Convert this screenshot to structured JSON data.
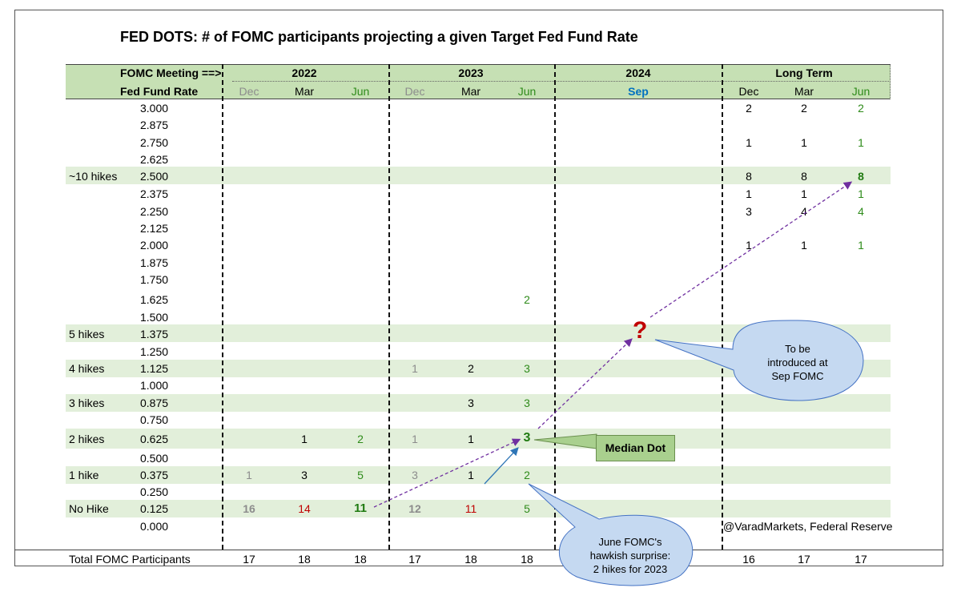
{
  "title": "FED DOTS: # of FOMC participants projecting a given Target Fed Fund Rate",
  "header": {
    "meeting_label": "FOMC Meeting ==>",
    "rate_label": "Fed Fund Rate",
    "groups": [
      "2022",
      "2023",
      "2024",
      "Long Term"
    ],
    "months": {
      "g2022": [
        "Dec",
        "Mar",
        "Jun"
      ],
      "g2023": [
        "Dec",
        "Mar",
        "Jun"
      ],
      "g2024": [
        "Sep"
      ],
      "glt": [
        "Dec",
        "Mar",
        "Jun"
      ]
    }
  },
  "rates": [
    "3.000",
    "2.875",
    "2.750",
    "2.625",
    "2.500",
    "2.375",
    "2.250",
    "2.125",
    "2.000",
    "1.875",
    "1.750",
    "1.625",
    "1.500",
    "1.375",
    "1.250",
    "1.125",
    "1.000",
    "0.875",
    "0.750",
    "0.625",
    "0.500",
    "0.375",
    "0.250",
    "0.125",
    "0.000"
  ],
  "hike_labels": {
    "r4": "~10 hikes",
    "r13": "5 hikes",
    "r15": "4 hikes",
    "r17": "3 hikes",
    "r19": "2 hikes",
    "r21": "1 hike",
    "r23": "No Hike"
  },
  "values": {
    "r0": {
      "lt_dec": "2",
      "lt_mar": "2",
      "lt_jun": "2"
    },
    "r2": {
      "lt_dec": "1",
      "lt_mar": "1",
      "lt_jun": "1"
    },
    "r4": {
      "lt_dec": "8",
      "lt_mar": "8",
      "lt_jun": "8"
    },
    "r5": {
      "lt_dec": "1",
      "lt_mar": "1",
      "lt_jun": "1"
    },
    "r6": {
      "lt_dec": "3",
      "lt_mar": "4",
      "lt_jun": "4"
    },
    "r8": {
      "lt_dec": "1",
      "lt_mar": "1",
      "lt_jun": "1"
    },
    "r11": {
      "y23_jun": "2"
    },
    "r15": {
      "y23_dec": "1",
      "y23_mar": "2",
      "y23_jun": "3"
    },
    "r17": {
      "y23_mar": "3",
      "y23_jun": "3"
    },
    "r19": {
      "y22_mar": "1",
      "y22_jun": "2",
      "y23_dec": "1",
      "y23_mar": "1",
      "y23_jun": "3"
    },
    "r21": {
      "y22_dec": "1",
      "y22_mar": "3",
      "y22_jun": "5",
      "y23_dec": "3",
      "y23_mar": "1",
      "y23_jun": "2"
    },
    "r23": {
      "y22_dec": "16",
      "y22_mar": "14",
      "y22_jun": "11",
      "y23_dec": "12",
      "y23_mar": "11",
      "y23_jun": "5"
    }
  },
  "totals": {
    "label": "Total FOMC Participants",
    "y22_dec": "17",
    "y22_mar": "18",
    "y22_jun": "18",
    "y23_dec": "17",
    "y23_mar": "18",
    "y23_jun": "18",
    "lt_dec": "16",
    "lt_mar": "17",
    "lt_jun": "17"
  },
  "annotations": {
    "median_dot": "Median Dot",
    "question_mark": "?",
    "sep_callout": [
      "To be",
      "introduced at",
      "Sep FOMC"
    ],
    "june_callout": [
      "June FOMC's",
      "hawkish surprise:",
      "2 hikes for 2023"
    ],
    "source": "@VaradMarkets, Federal Reserve"
  },
  "colors": {
    "header_bg": "#c6e0b4",
    "band_bg": "#e2efda",
    "callout_fill": "#c5d9f1",
    "callout_stroke": "#4472c4",
    "arrow_purple": "#7030a0",
    "arrow_blue": "#2e75b6",
    "red": "#c00000",
    "green": "#2e8b1a"
  }
}
